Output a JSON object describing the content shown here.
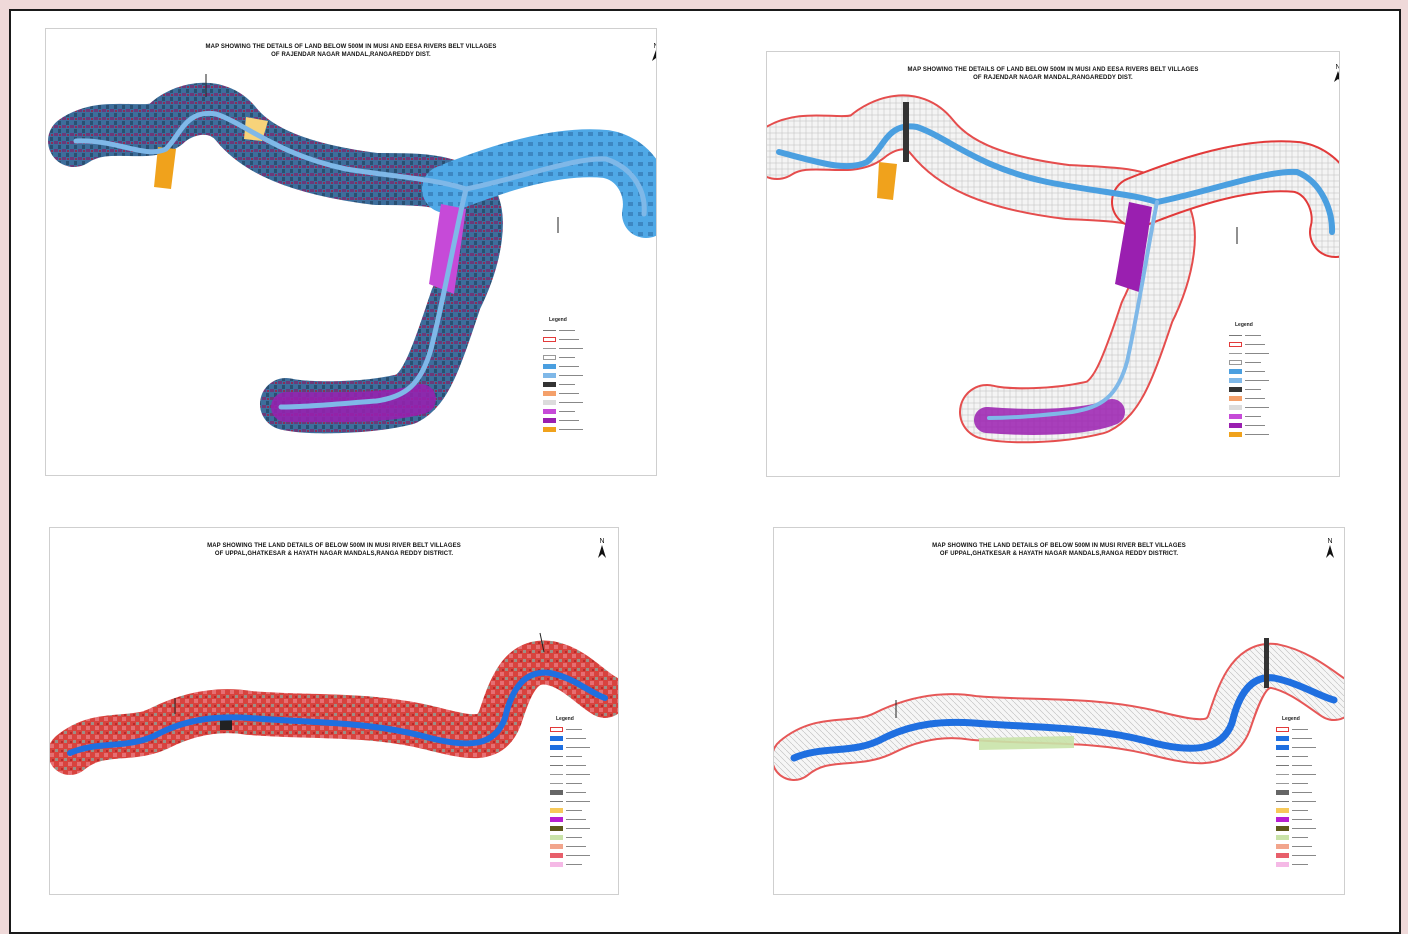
{
  "maps": [
    {
      "title_line1": "MAP SHOWING THE DETAILS OF LAND BELOW 500M IN MUSI AND EESA RIVERS BELT VILLAGES",
      "title_line2": "OF RAJENDAR NAGAR MANDAL,RANGAREDDY DIST.",
      "style": "satellite",
      "legend_title": "Legend",
      "legend_items": [
        {
          "swatch": "line",
          "color": "#777777"
        },
        {
          "swatch": "outline",
          "color": "#e23a3a"
        },
        {
          "swatch": "line",
          "color": "#999999"
        },
        {
          "swatch": "box",
          "color": "#ffffff"
        },
        {
          "swatch": "fill",
          "color": "#4a9fe0"
        },
        {
          "swatch": "fill",
          "color": "#7fb8e8"
        },
        {
          "swatch": "fill",
          "color": "#333333"
        },
        {
          "swatch": "fill",
          "color": "#f4a06a"
        },
        {
          "swatch": "fill",
          "color": "#dcdcdc"
        },
        {
          "swatch": "fill",
          "color": "#c64ad8"
        },
        {
          "swatch": "fill",
          "color": "#9a1fb0"
        },
        {
          "swatch": "fill",
          "color": "#f0a21c"
        }
      ]
    },
    {
      "title_line1": "MAP SHOWING THE DETAILS OF LAND BELOW 500M IN MUSI AND EESA RIVERS BELT VILLAGES",
      "title_line2": "OF RAJENDAR NAGAR MANDAL,RANGAREDDY DIST.",
      "style": "outline",
      "legend_title": "Legend",
      "legend_items": [
        {
          "swatch": "line",
          "color": "#777777"
        },
        {
          "swatch": "outline",
          "color": "#e23a3a"
        },
        {
          "swatch": "line",
          "color": "#999999"
        },
        {
          "swatch": "box",
          "color": "#ffffff"
        },
        {
          "swatch": "fill",
          "color": "#4a9fe0"
        },
        {
          "swatch": "fill",
          "color": "#7fb8e8"
        },
        {
          "swatch": "fill",
          "color": "#333333"
        },
        {
          "swatch": "fill",
          "color": "#f4a06a"
        },
        {
          "swatch": "fill",
          "color": "#dcdcdc"
        },
        {
          "swatch": "fill",
          "color": "#c64ad8"
        },
        {
          "swatch": "fill",
          "color": "#9a1fb0"
        },
        {
          "swatch": "fill",
          "color": "#f0a21c"
        }
      ]
    },
    {
      "title_line1": "MAP SHOWING THE LAND DETAILS OF BELOW 500M IN MUSI RIVER BELT VILLAGES",
      "title_line2": "OF UPPAL,GHATKESAR & HAYATH NAGAR MANDALS,RANGA REDDY DISTRICT.",
      "style": "satellite",
      "legend_title": "Legend",
      "legend_items": [
        {
          "swatch": "outline",
          "color": "#e23a3a"
        },
        {
          "swatch": "fill",
          "color": "#1f6fe0"
        },
        {
          "swatch": "fill",
          "color": "#1f6fe0"
        },
        {
          "swatch": "line",
          "color": "#777777"
        },
        {
          "swatch": "line",
          "color": "#777777"
        },
        {
          "swatch": "line",
          "color": "#999999"
        },
        {
          "swatch": "line",
          "color": "#999999"
        },
        {
          "swatch": "fill",
          "color": "#666666"
        },
        {
          "swatch": "line",
          "color": "#777777"
        },
        {
          "swatch": "fill",
          "color": "#f7c95a"
        },
        {
          "swatch": "fill",
          "color": "#b81fd1"
        },
        {
          "swatch": "fill",
          "color": "#5d5a1c"
        },
        {
          "swatch": "fill",
          "color": "#c9e3a8"
        },
        {
          "swatch": "fill",
          "color": "#f2a58c"
        },
        {
          "swatch": "fill",
          "color": "#e85f6b"
        },
        {
          "swatch": "fill",
          "color": "#f5b9e6"
        }
      ]
    },
    {
      "title_line1": "MAP SHOWING THE LAND DETAILS OF BELOW 500M IN MUSI RIVER BELT VILLAGES",
      "title_line2": "OF UPPAL,GHATKESAR & HAYATH NAGAR MANDALS,RANGA REDDY DISTRICT.",
      "style": "outline",
      "legend_title": "Legend",
      "legend_items": [
        {
          "swatch": "outline",
          "color": "#e23a3a"
        },
        {
          "swatch": "fill",
          "color": "#1f6fe0"
        },
        {
          "swatch": "fill",
          "color": "#1f6fe0"
        },
        {
          "swatch": "line",
          "color": "#777777"
        },
        {
          "swatch": "line",
          "color": "#777777"
        },
        {
          "swatch": "line",
          "color": "#999999"
        },
        {
          "swatch": "line",
          "color": "#999999"
        },
        {
          "swatch": "fill",
          "color": "#666666"
        },
        {
          "swatch": "line",
          "color": "#777777"
        },
        {
          "swatch": "fill",
          "color": "#f7c95a"
        },
        {
          "swatch": "fill",
          "color": "#b81fd1"
        },
        {
          "swatch": "fill",
          "color": "#5d5a1c"
        },
        {
          "swatch": "fill",
          "color": "#c9e3a8"
        },
        {
          "swatch": "fill",
          "color": "#f2a58c"
        },
        {
          "swatch": "fill",
          "color": "#e85f6b"
        },
        {
          "swatch": "fill",
          "color": "#f5b9e6"
        }
      ]
    }
  ],
  "north_label": "N",
  "colors": {
    "background": "#efd9d9",
    "satellite_belt_upper": "#3d6e9c",
    "satellite_belt_lower": "#d8433e",
    "river_light": "#7fb8e8",
    "river_dark": "#1f6fe0",
    "buffer_outline": "#e23a3a",
    "water_body": "#c64ad8",
    "fallow": "#f0a21c"
  }
}
